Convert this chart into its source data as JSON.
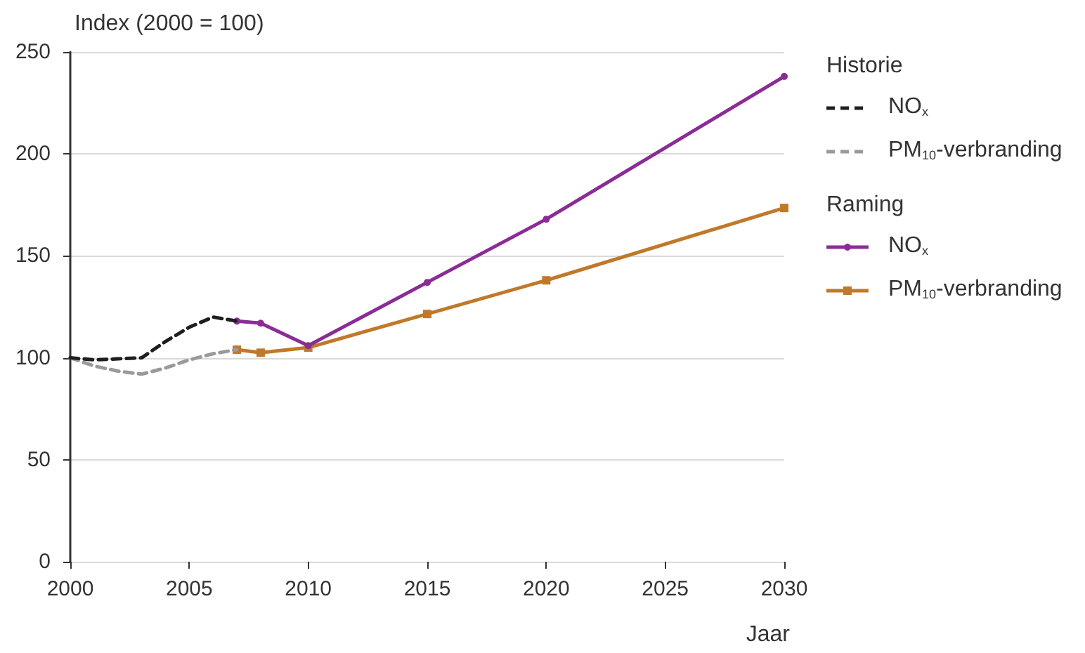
{
  "chart_data": {
    "type": "line",
    "ylabel": "Index (2000 = 100)",
    "xlabel": "Jaar",
    "xlim": [
      2000,
      2030
    ],
    "xticks": [
      2000,
      2005,
      2010,
      2015,
      2020,
      2025,
      2030
    ],
    "ylim": [
      0,
      250
    ],
    "yticks": [
      0,
      50,
      100,
      150,
      200,
      250
    ],
    "grid": "y",
    "legend": "right",
    "legend_title": [
      "Historie",
      "Raming"
    ],
    "series": [
      {
        "name": "NO$_{x}$",
        "color": "#1e1e1e",
        "line_style": "dashed",
        "marker": "none",
        "x": [
          2000,
          2001,
          2002,
          2003,
          2004,
          2005,
          2006,
          2007
        ],
        "values": [
          100,
          99,
          99.5,
          100,
          108,
          115,
          120,
          118
        ]
      },
      {
        "name": "PM$_{10}$-verbranding",
        "color": "#9a9a9a",
        "line_style": "dashed",
        "marker": "none",
        "x": [
          2000,
          2001,
          2002,
          2003,
          2004,
          2005,
          2006,
          2007
        ],
        "values": [
          100,
          96,
          93.5,
          92,
          95,
          99,
          102,
          104
        ]
      },
      {
        "name": "NO$_{x}$",
        "color": "#8b2c96",
        "line_style": "solid",
        "marker": "circle",
        "x": [
          2007,
          2008,
          2010,
          2015,
          2020,
          2030
        ],
        "values": [
          118,
          117,
          106,
          137,
          168,
          238
        ]
      },
      {
        "name": "PM$_{10}$-verbranding",
        "color": "#c0792a",
        "line_style": "solid",
        "marker": "square",
        "x": [
          2007,
          2008,
          2010,
          2015,
          2020,
          2030
        ],
        "values": [
          104,
          102.5,
          105,
          121.5,
          138,
          173.5
        ]
      }
    ]
  }
}
